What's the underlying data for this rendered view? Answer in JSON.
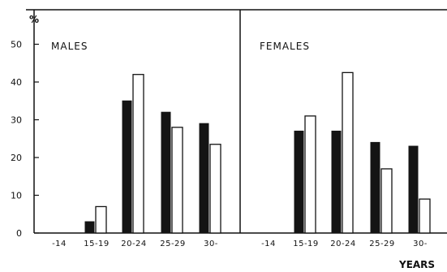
{
  "chart_data": {
    "type": "bar",
    "y_unit": "%",
    "x_unit": "YEARS",
    "ylim": [
      0,
      50
    ],
    "y_ticks": [
      0,
      10,
      20,
      30,
      40,
      50
    ],
    "categories": [
      "-14",
      "15-19",
      "20-24",
      "25-29",
      "30-"
    ],
    "series_styles": [
      "solid black",
      "white outline"
    ],
    "panels": [
      {
        "title": "MALES",
        "series": [
          {
            "values": [
              0,
              3,
              35,
              32,
              29
            ]
          },
          {
            "values": [
              0,
              7,
              42,
              28,
              23.5
            ]
          }
        ]
      },
      {
        "title": "FEMALES",
        "series": [
          {
            "values": [
              0,
              27,
              27,
              24,
              23
            ]
          },
          {
            "values": [
              0,
              31,
              42.5,
              17,
              9
            ]
          }
        ]
      }
    ]
  }
}
